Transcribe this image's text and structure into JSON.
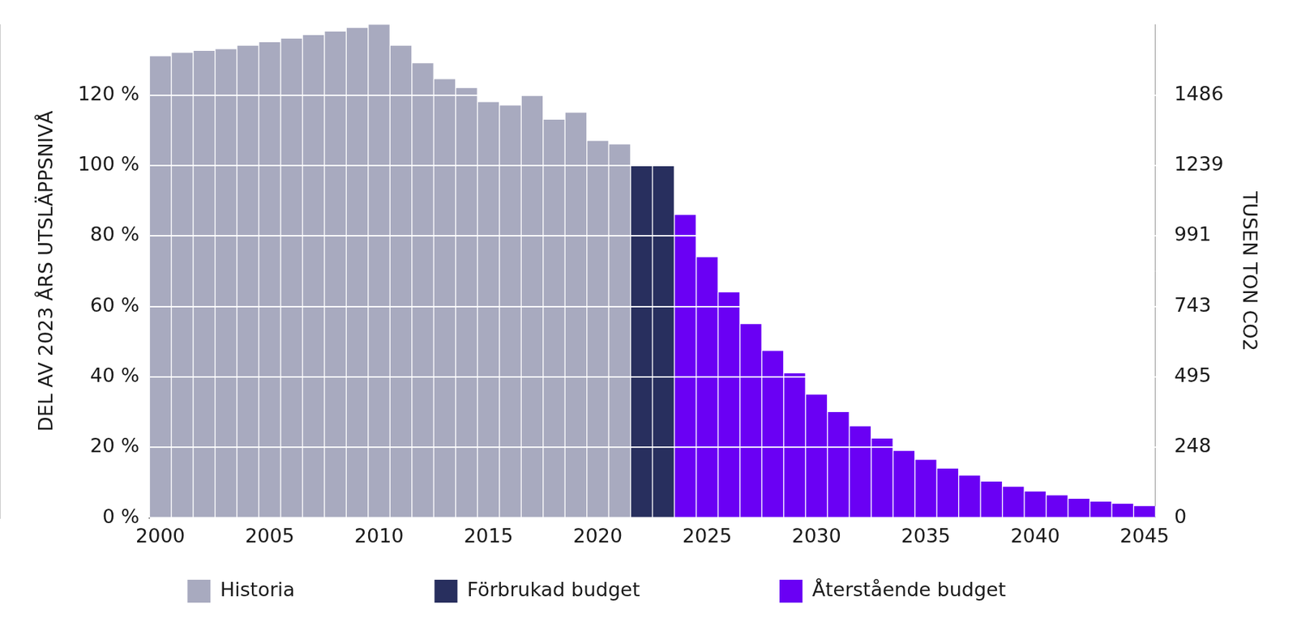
{
  "chart_data": {
    "type": "bar",
    "x": [
      2000,
      2001,
      2002,
      2003,
      2004,
      2005,
      2006,
      2007,
      2008,
      2009,
      2010,
      2011,
      2012,
      2013,
      2014,
      2015,
      2016,
      2017,
      2018,
      2019,
      2020,
      2021,
      2022,
      2023,
      2024,
      2025,
      2026,
      2027,
      2028,
      2029,
      2030,
      2031,
      2032,
      2033,
      2034,
      2035,
      2036,
      2037,
      2038,
      2039,
      2040,
      2041,
      2042,
      2043,
      2044,
      2045
    ],
    "xlim": [
      1999.5,
      2045.5
    ],
    "xticks": [
      2000,
      2005,
      2010,
      2015,
      2020,
      2025,
      2030,
      2035,
      2040,
      2045
    ],
    "ylabel": "DEL AV 2023 ÅRS UTSLÄPPSNIVÅ",
    "ylim": [
      0,
      140
    ],
    "yticks": [
      {
        "value": 0,
        "label": "0 %"
      },
      {
        "value": 20,
        "label": "20 %"
      },
      {
        "value": 40,
        "label": "40 %"
      },
      {
        "value": 60,
        "label": "60 %"
      },
      {
        "value": 80,
        "label": "80 %"
      },
      {
        "value": 100,
        "label": "100 %"
      },
      {
        "value": 120,
        "label": "120 %"
      }
    ],
    "y2label": "TUSEN TON CO2",
    "y2lim": [
      0,
      1734.6
    ],
    "y2ticks": [
      0,
      248,
      495,
      743,
      991,
      1239,
      1486
    ],
    "grid": true,
    "legend": "bottom",
    "series": [
      {
        "name": "Historia",
        "color": "#a8aabf",
        "values": [
          131,
          132,
          132.5,
          133,
          134,
          135,
          136,
          137,
          138,
          139,
          140,
          134,
          129,
          124.5,
          122,
          118,
          117,
          120,
          113,
          115,
          107,
          106,
          null,
          null,
          null,
          null,
          null,
          null,
          null,
          null,
          null,
          null,
          null,
          null,
          null,
          null,
          null,
          null,
          null,
          null,
          null,
          null,
          null,
          null,
          null,
          null
        ]
      },
      {
        "name": "Förbrukad budget",
        "color": "#282f5e",
        "values": [
          null,
          null,
          null,
          null,
          null,
          null,
          null,
          null,
          null,
          null,
          null,
          null,
          null,
          null,
          null,
          null,
          null,
          null,
          null,
          null,
          null,
          null,
          100,
          100,
          null,
          null,
          null,
          null,
          null,
          null,
          null,
          null,
          null,
          null,
          null,
          null,
          null,
          null,
          null,
          null,
          null,
          null,
          null,
          null,
          null,
          null
        ]
      },
      {
        "name": "Återstående budget",
        "color": "#6a00f4",
        "values": [
          null,
          null,
          null,
          null,
          null,
          null,
          null,
          null,
          null,
          null,
          null,
          null,
          null,
          null,
          null,
          null,
          null,
          null,
          null,
          null,
          null,
          null,
          null,
          null,
          86,
          74,
          64,
          55,
          47.4,
          41,
          35,
          30,
          26,
          22.5,
          19,
          16.5,
          14,
          12,
          10.3,
          8.8,
          7.5,
          6.4,
          5.4,
          4.6,
          4,
          3.3
        ]
      }
    ]
  }
}
